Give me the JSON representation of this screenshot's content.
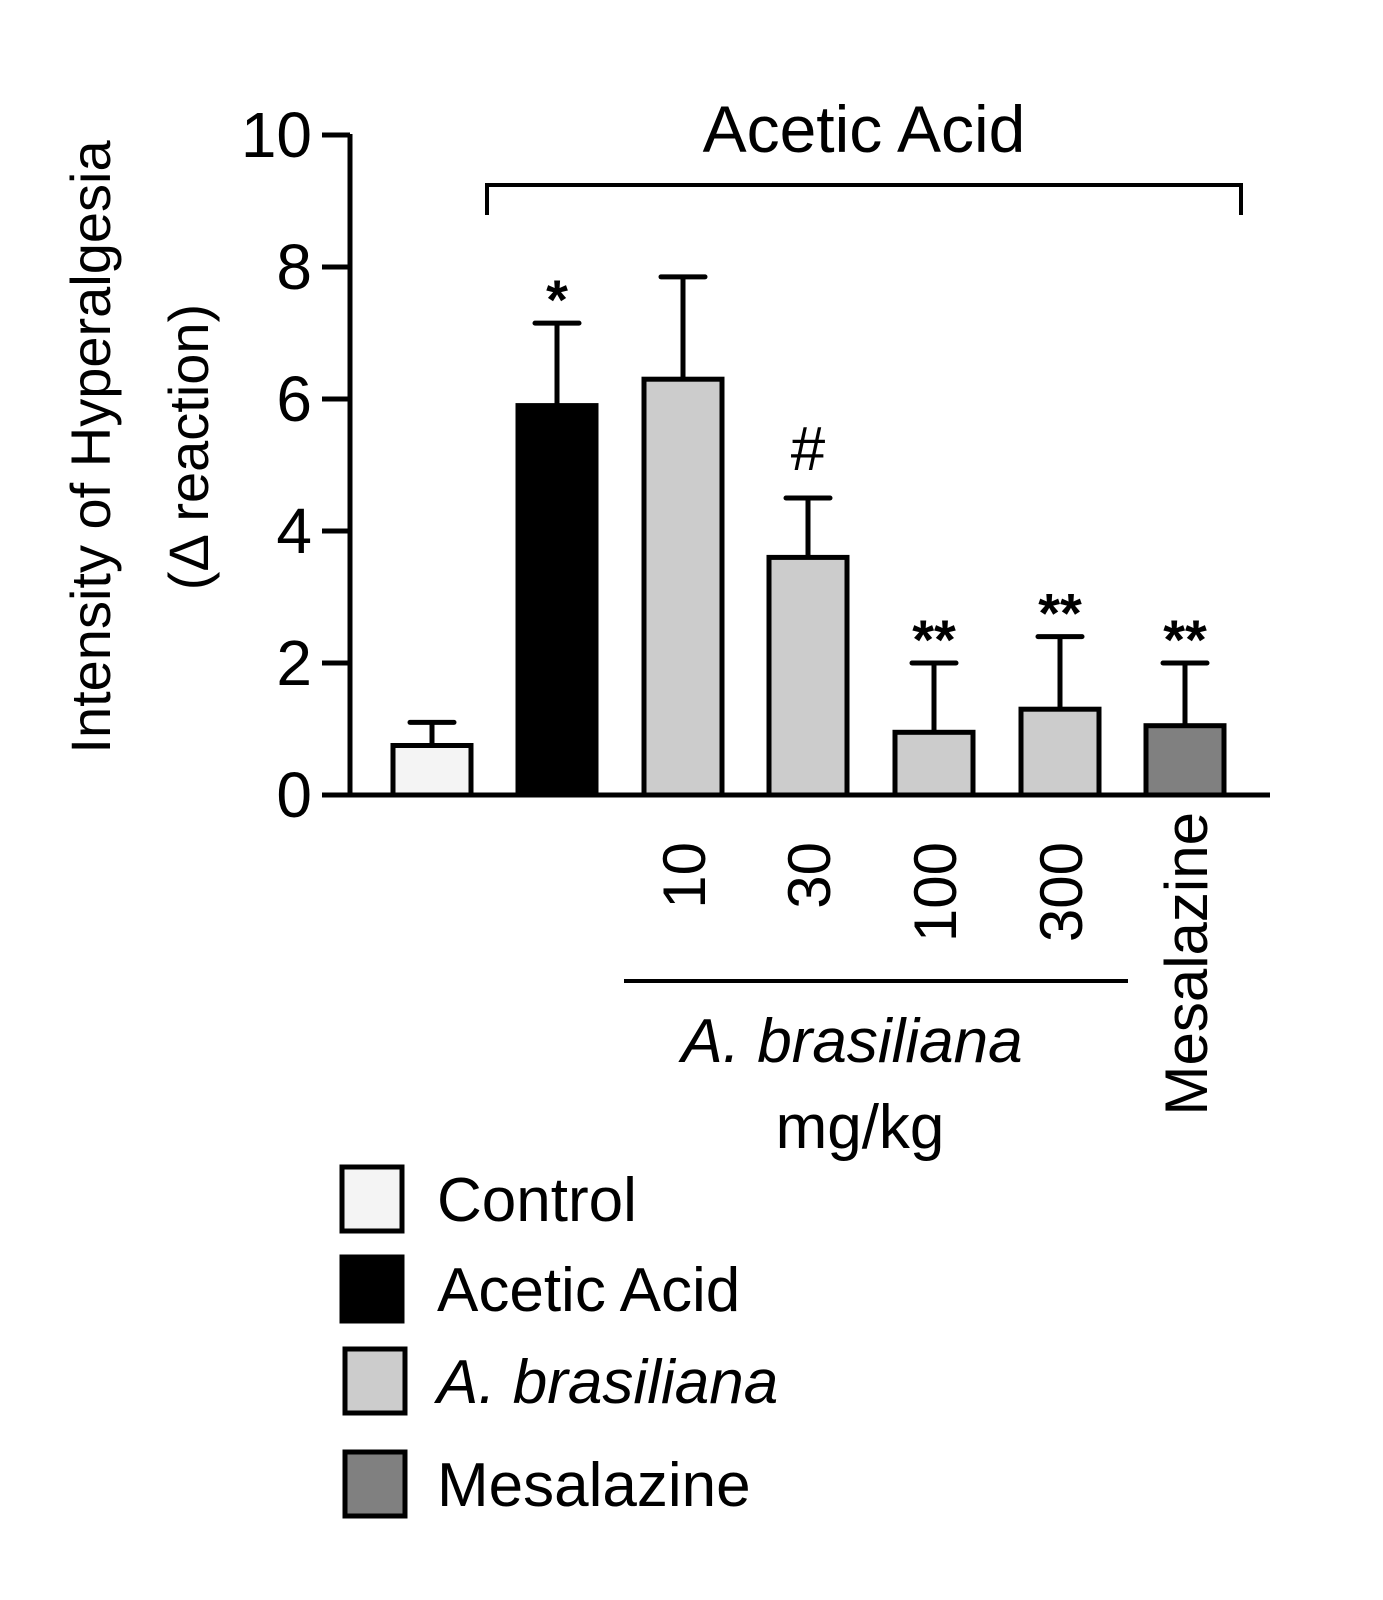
{
  "chart_data": {
    "type": "bar",
    "title": "Acetic Acid",
    "ylabel_line1": "Intensity of Hyperalgesia",
    "ylabel_line2": "(Δ reaction)",
    "xlabel_group": "A. brasiliana",
    "xlabel_unit": "mg/kg",
    "ylim": [
      0,
      10
    ],
    "yticks": [
      "0",
      "2",
      "4",
      "6",
      "8",
      "10"
    ],
    "categories": [
      "Control",
      "Acetic Acid",
      "10",
      "30",
      "100",
      "300",
      "Mesalazine"
    ],
    "tick_labels": [
      "",
      "",
      "10",
      "30",
      "100",
      "300",
      "Mesalazine"
    ],
    "values": [
      0.75,
      5.9,
      6.3,
      3.6,
      0.95,
      1.3,
      1.05
    ],
    "error_upper": [
      1.1,
      7.15,
      7.85,
      4.5,
      2.0,
      2.4,
      2.0
    ],
    "annotations": [
      "",
      "*",
      "",
      "#",
      "**",
      "**",
      "**"
    ],
    "bar_colors": [
      "#f4f4f4",
      "#000000",
      "#cccccc",
      "#cccccc",
      "#cccccc",
      "#cccccc",
      "#808080"
    ],
    "bracket_label": "Acetic Acid",
    "legend": [
      {
        "label": "Control",
        "color": "#f4f4f4",
        "italic": false
      },
      {
        "label": "Acetic Acid",
        "color": "#000000",
        "italic": false
      },
      {
        "label": "A. brasiliana",
        "color": "#cccccc",
        "italic": true
      },
      {
        "label": "Mesalazine",
        "color": "#808080",
        "italic": false
      }
    ],
    "grid": false,
    "legend_position": "bottom-left"
  }
}
